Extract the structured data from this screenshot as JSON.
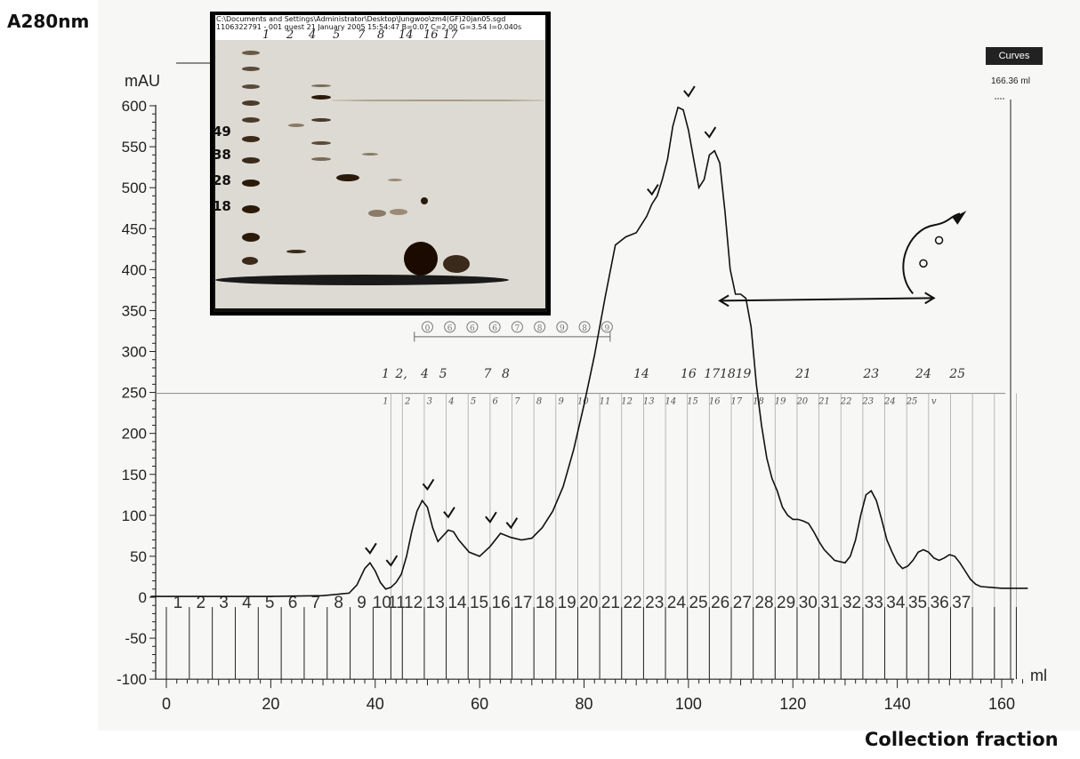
{
  "labels": {
    "outer_y": "A280nm",
    "outer_x": "Collection fraction",
    "yunit": "mAU",
    "xunit": "ml",
    "curves_button": "Curves",
    "curves_value": "166.36 ml"
  },
  "gel": {
    "header_line1": "C:\\Documents and Settings\\Administrator\\Desktop\\Jungwoo\\zm4(GF)20jan05.sgd",
    "header_line2": "1106322791 - 001       guest   21 January 2005 15:54:47 B=0.07 C=2.00 G=3.54 I=0.040s",
    "lanes": [
      "1",
      "2",
      "4",
      "5",
      "7",
      "8",
      "14",
      "16",
      "17"
    ],
    "mw_markers": [
      "49",
      "38",
      "28",
      "18"
    ]
  },
  "chart_data": {
    "type": "line",
    "xlabel": "ml",
    "ylabel": "mAU",
    "xlim": [
      -3,
      166
    ],
    "ylim": [
      -100,
      600
    ],
    "xticks": [
      0,
      20,
      40,
      60,
      80,
      100,
      120,
      140,
      160
    ],
    "yticks": [
      -100,
      -50,
      0,
      50,
      100,
      150,
      200,
      250,
      300,
      350,
      400,
      450,
      500,
      550,
      600
    ],
    "series": [
      {
        "x": [
          -3,
          5,
          20,
          30,
          35,
          36.5,
          38,
          39,
          40,
          41,
          42,
          43,
          44,
          45,
          46,
          47,
          48,
          49,
          50,
          51,
          52,
          54,
          55,
          56,
          58,
          60,
          62,
          64,
          66,
          68,
          70,
          72,
          74,
          76,
          78,
          80,
          82,
          84,
          86,
          88,
          90,
          92,
          93,
          94,
          95,
          96,
          97,
          98,
          99,
          100,
          101,
          102,
          103,
          104,
          105,
          106,
          107,
          108,
          109,
          110,
          111,
          112,
          113,
          114,
          115,
          116,
          117,
          118,
          119,
          120,
          121,
          122,
          123,
          124,
          125,
          126,
          128,
          130,
          131,
          132,
          133,
          134,
          135,
          136,
          137,
          138,
          139,
          140,
          141,
          142,
          143,
          144,
          145,
          146,
          147,
          148,
          149,
          150,
          151,
          152,
          153,
          154,
          155,
          156,
          158,
          160,
          162,
          165
        ],
        "y": [
          1,
          1,
          1,
          2,
          5,
          15,
          35,
          42,
          32,
          18,
          10,
          12,
          18,
          28,
          50,
          80,
          105,
          118,
          110,
          85,
          68,
          82,
          80,
          70,
          55,
          50,
          62,
          78,
          73,
          70,
          72,
          85,
          105,
          135,
          180,
          235,
          295,
          365,
          430,
          440,
          445,
          465,
          480,
          490,
          510,
          535,
          575,
          598,
          595,
          570,
          535,
          500,
          510,
          540,
          545,
          530,
          470,
          400,
          370,
          370,
          365,
          330,
          260,
          210,
          170,
          145,
          130,
          110,
          100,
          95,
          95,
          93,
          90,
          80,
          68,
          58,
          45,
          42,
          50,
          70,
          100,
          125,
          130,
          118,
          95,
          70,
          55,
          42,
          35,
          38,
          45,
          55,
          58,
          55,
          48,
          45,
          48,
          52,
          50,
          42,
          32,
          22,
          16,
          13,
          12,
          11,
          11,
          11
        ]
      }
    ],
    "fraction_numbers": [
      "1",
      "2",
      "3",
      "4",
      "5",
      "6",
      "7",
      "8",
      "9",
      "10",
      "11",
      "12",
      "13",
      "14",
      "15",
      "16",
      "17",
      "18",
      "19",
      "20",
      "21",
      "22",
      "23",
      "24",
      "25",
      "26",
      "27",
      "28",
      "29",
      "30",
      "31",
      "32",
      "33",
      "34",
      "35",
      "36",
      "37"
    ],
    "fraction_boundaries": [
      0,
      4.4,
      8.8,
      13.2,
      17.6,
      22.0,
      26.4,
      30.8,
      35.2,
      39.6,
      43.0,
      45.2,
      49.4,
      53.6,
      57.8,
      62.0,
      66.2,
      70.4,
      74.6,
      78.8,
      83.0,
      87.2,
      91.4,
      95.6,
      99.8,
      104.0,
      108.2,
      112.4,
      116.6,
      120.8,
      125.0,
      129.2,
      133.4,
      137.6,
      141.8,
      146.0,
      150.2,
      154.4,
      158.6,
      162.8
    ],
    "handwritten_lane_labels": [
      {
        "text": "1",
        "x": 42
      },
      {
        "text": "2,",
        "x": 45
      },
      {
        "text": "4",
        "x": 49.5
      },
      {
        "text": "5",
        "x": 53
      },
      {
        "text": "7",
        "x": 61.5
      },
      {
        "text": "8",
        "x": 65
      },
      {
        "text": "14",
        "x": 91
      },
      {
        "text": "16",
        "x": 100
      },
      {
        "text": "17",
        "x": 104.5
      },
      {
        "text": "18",
        "x": 107.5
      },
      {
        "text": "19",
        "x": 110.5
      },
      {
        "text": "21",
        "x": 122
      },
      {
        "text": "23",
        "x": 135
      },
      {
        "text": "24",
        "x": 145
      },
      {
        "text": "25",
        "x": 151.5
      }
    ],
    "sub_fraction_labels": [
      "1",
      "2",
      "3",
      "4",
      "5",
      "6",
      "7",
      "8",
      "9",
      "10",
      "11",
      "12",
      "13",
      "14",
      "15",
      "16",
      "17",
      "18",
      "19",
      "20",
      "21",
      "22",
      "23",
      "24",
      "25",
      "v"
    ],
    "circled_labels": [
      "0",
      "6",
      "6",
      "6",
      "7",
      "8",
      "9",
      "8",
      "9"
    ],
    "checkmarks": [
      {
        "x": 39,
        "y": 42
      },
      {
        "x": 43,
        "y": 27
      },
      {
        "x": 50,
        "y": 120
      },
      {
        "x": 54,
        "y": 86
      },
      {
        "x": 62,
        "y": 80
      },
      {
        "x": 66,
        "y": 73
      },
      {
        "x": 93,
        "y": 480
      },
      {
        "x": 100,
        "y": 600
      },
      {
        "x": 104,
        "y": 550
      }
    ],
    "grid": false
  }
}
